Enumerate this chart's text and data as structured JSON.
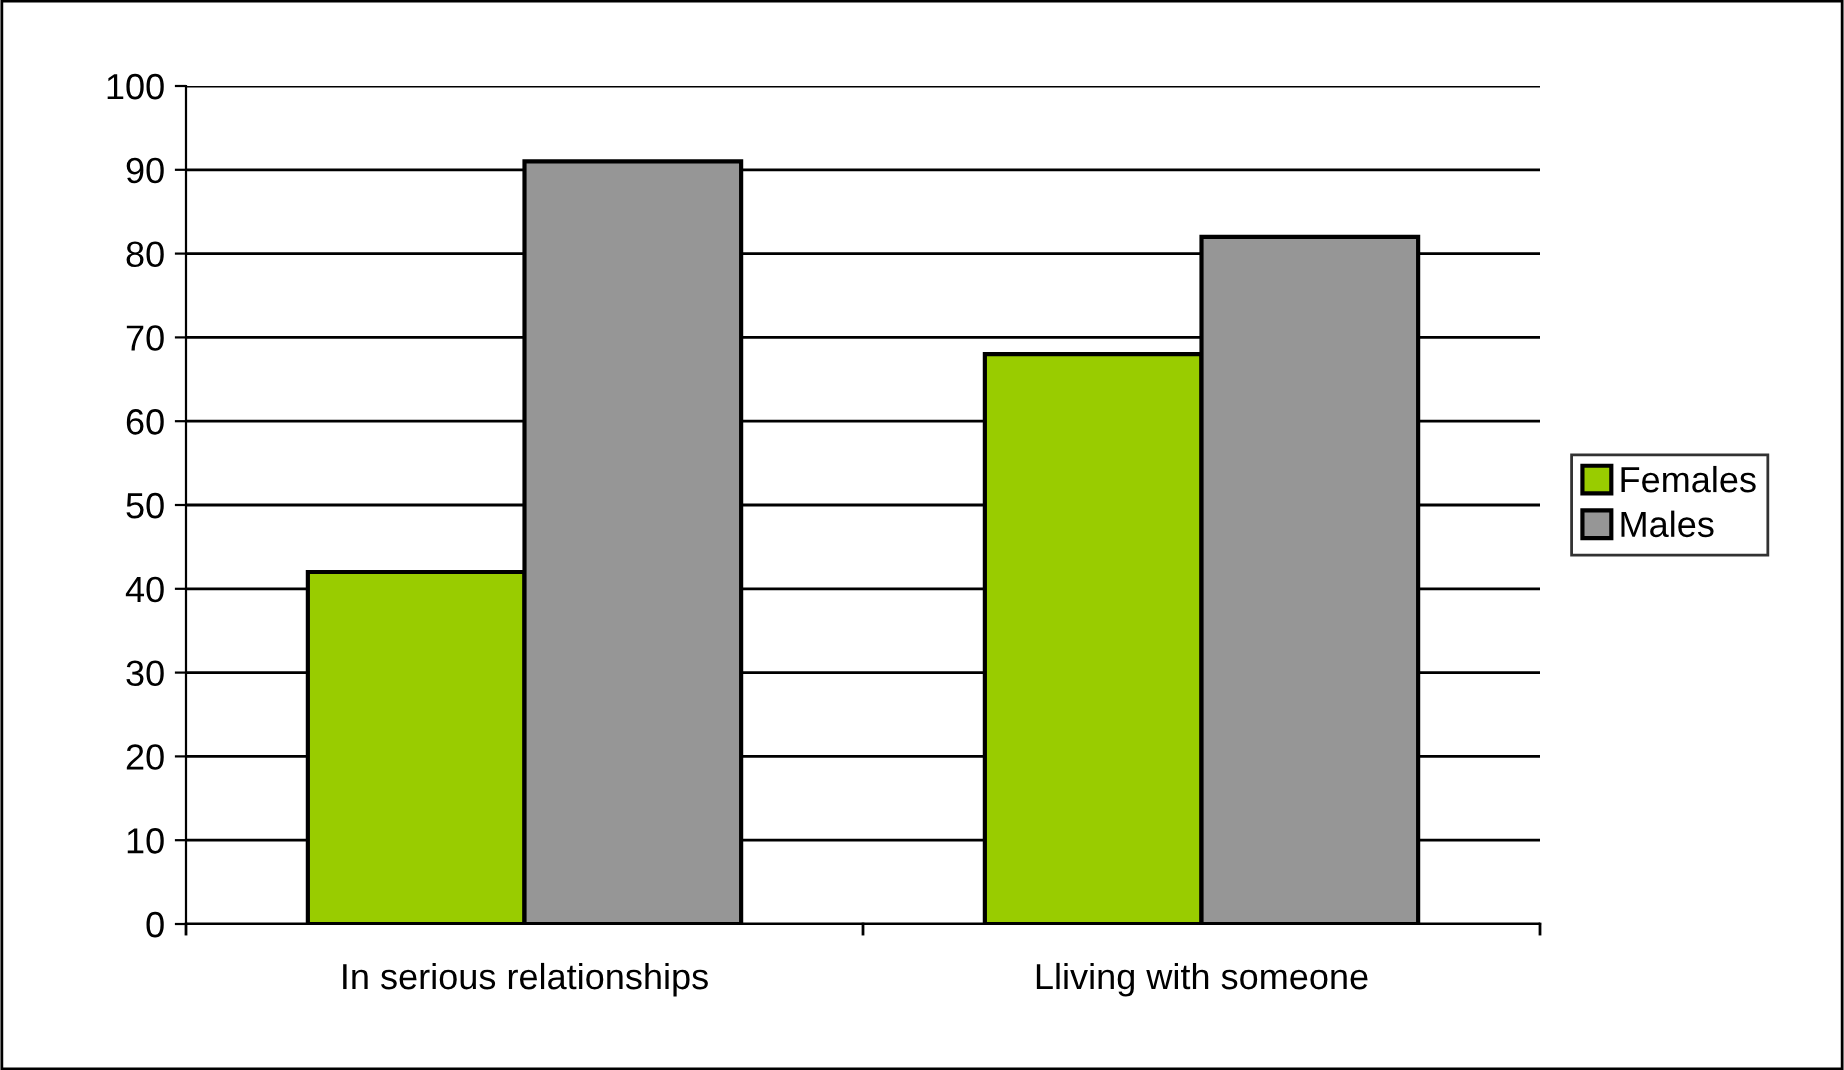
{
  "chart_data": {
    "type": "bar",
    "categories": [
      "In serious relationships",
      "Lliving with someone"
    ],
    "series": [
      {
        "name": "Females",
        "color": "#99cc00",
        "values": [
          42,
          68
        ]
      },
      {
        "name": "Males",
        "color": "#969696",
        "values": [
          91,
          82
        ]
      }
    ],
    "ylim": [
      0,
      100
    ],
    "yticks": [
      0,
      10,
      20,
      30,
      40,
      50,
      60,
      70,
      80,
      90,
      100
    ],
    "grid": "y",
    "legend": "right"
  }
}
